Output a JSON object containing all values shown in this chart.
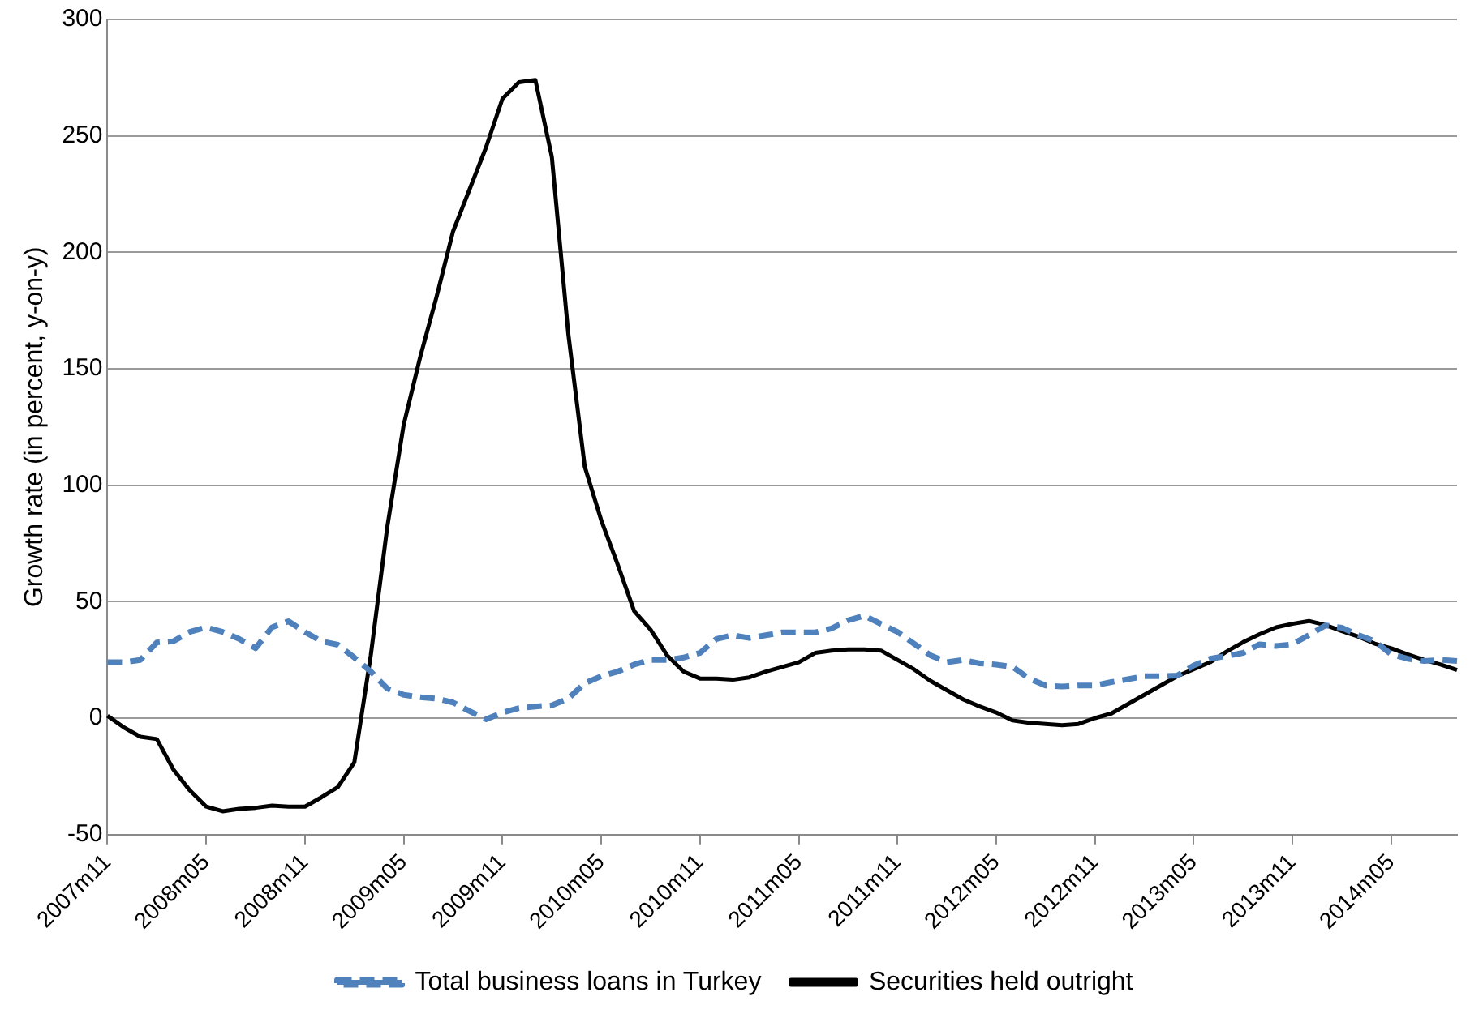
{
  "chart_data": {
    "type": "line",
    "ylabel": "Growth rate (in percent, y-on-y)",
    "categories": [
      "2007m11",
      null,
      null,
      null,
      null,
      null,
      "2008m05",
      null,
      null,
      null,
      null,
      null,
      "2008m11",
      null,
      null,
      null,
      null,
      null,
      "2009m05",
      null,
      null,
      null,
      null,
      null,
      "2009m11",
      null,
      null,
      null,
      null,
      null,
      "2010m05",
      null,
      null,
      null,
      null,
      null,
      "2010m11",
      null,
      null,
      null,
      null,
      null,
      "2011m05",
      null,
      null,
      null,
      null,
      null,
      "2011m11",
      null,
      null,
      null,
      null,
      null,
      "2012m05",
      null,
      null,
      null,
      null,
      null,
      "2012m11",
      null,
      null,
      null,
      null,
      null,
      "2013m05",
      null,
      null,
      null,
      null,
      null,
      "2013m11",
      null,
      null,
      null,
      null,
      null,
      "2014m05",
      null,
      null,
      null,
      null
    ],
    "series": [
      {
        "name": "Total business loans in Turkey",
        "color": "#4f81bd",
        "line_style": "dashed",
        "values": [
          24,
          24,
          25,
          32.5,
          33,
          37,
          39,
          37,
          34,
          30,
          39,
          41.6,
          37,
          33,
          31.5,
          26,
          20,
          12.7,
          10,
          9,
          8.4,
          6.7,
          3,
          -0.5,
          2.4,
          4.3,
          5,
          5.5,
          8.4,
          15,
          18,
          20,
          23,
          25,
          25,
          26,
          28,
          34,
          35.6,
          34.4,
          35.6,
          36.8,
          36.8,
          36.8,
          38.5,
          42,
          44,
          40.4,
          37,
          32,
          27,
          24,
          25,
          23.5,
          23,
          22,
          17,
          14,
          13.6,
          14,
          14,
          15.5,
          16.7,
          18,
          18,
          18.3,
          22.6,
          25.5,
          26.7,
          28,
          31.7,
          31,
          31.7,
          35.7,
          39.8,
          38.8,
          35.7,
          33,
          27.4,
          25.5,
          24.5,
          25,
          24.5
        ]
      },
      {
        "name": "Securities held outright",
        "color": "#000000",
        "line_style": "solid",
        "values": [
          1,
          -4,
          -8,
          -9,
          -22,
          -31,
          -38,
          -40,
          -39,
          -38.5,
          -37.6,
          -38,
          -38,
          -34,
          -29.6,
          -19,
          27,
          82,
          126,
          155,
          181,
          209,
          227,
          245,
          266,
          273,
          274,
          241,
          165,
          108,
          85,
          66,
          46,
          38,
          27,
          20,
          17,
          17,
          16.5,
          17.5,
          20,
          22,
          24,
          28,
          29,
          29.5,
          29.5,
          29,
          25,
          21,
          16,
          12,
          8,
          5,
          2.4,
          -1,
          -2,
          -2.5,
          -3,
          -2.5,
          0,
          2,
          6,
          10,
          14,
          18,
          21,
          24,
          28.6,
          32.6,
          36,
          39,
          40.5,
          41.7,
          40,
          37.4,
          35,
          32,
          30,
          27.4,
          25,
          23,
          20.7
        ]
      }
    ],
    "ylim": [
      -50,
      300
    ],
    "yticks": [
      -50,
      0,
      50,
      100,
      150,
      200,
      250,
      300
    ],
    "grid": "y",
    "legend": "bottom",
    "marker": "none"
  }
}
